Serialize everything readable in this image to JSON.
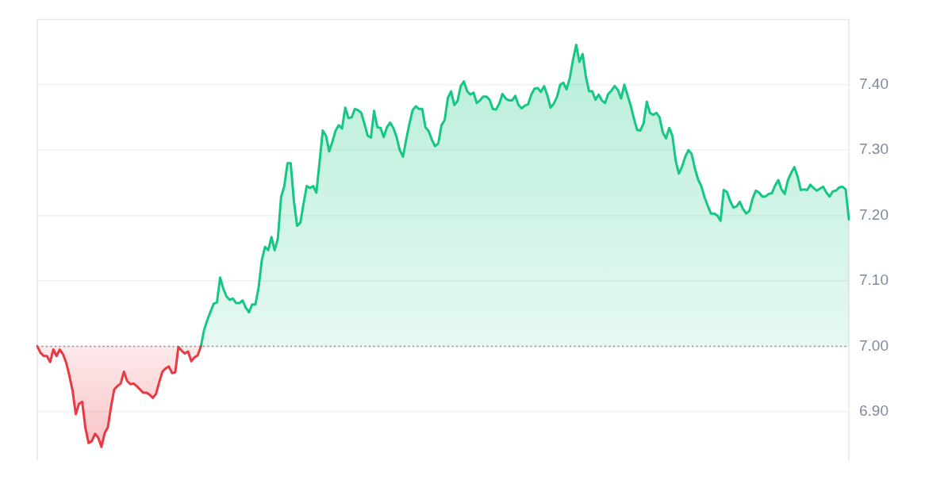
{
  "chart_data": {
    "type": "area",
    "categories": [
      null,
      null,
      null,
      null,
      null,
      null,
      null,
      null,
      null,
      null,
      null,
      null,
      null,
      null,
      null,
      null,
      null,
      null,
      null,
      null,
      null,
      null,
      null,
      null,
      null,
      null,
      null,
      null,
      null,
      null,
      null,
      null,
      null,
      null,
      null,
      null,
      null,
      null,
      null,
      null,
      null,
      null,
      null,
      null,
      null,
      null,
      null,
      null,
      null,
      null,
      null,
      null,
      null,
      null,
      null,
      null,
      null,
      null,
      null,
      null,
      null,
      null,
      null,
      null,
      null,
      null,
      null,
      null,
      null,
      null,
      null,
      null,
      null,
      null,
      null,
      null,
      null,
      null,
      null,
      null,
      null,
      null,
      null,
      null,
      null,
      null,
      null,
      null,
      null,
      null,
      null,
      null,
      null,
      null,
      null,
      null,
      null,
      null,
      null,
      null,
      null,
      null,
      null,
      null,
      null,
      null,
      null,
      null,
      null,
      null,
      null,
      null,
      null,
      null,
      null,
      null,
      null,
      null,
      null,
      null,
      null,
      null,
      null,
      null,
      null,
      null,
      null,
      null,
      null,
      null,
      null,
      null,
      null,
      null,
      null,
      null,
      null,
      null,
      null,
      null,
      null,
      null,
      null,
      null,
      null,
      null,
      null,
      null,
      null,
      null,
      null,
      null,
      null,
      null,
      null,
      null,
      null,
      null,
      null,
      null,
      null,
      null,
      null,
      null,
      null,
      null,
      null,
      null,
      null,
      null,
      null,
      null,
      null,
      null,
      null,
      null,
      null,
      null,
      null,
      null,
      null,
      null,
      null,
      null,
      null,
      null,
      null,
      null,
      null,
      null,
      null,
      null,
      null,
      null,
      null,
      null,
      null,
      null,
      null,
      null,
      null,
      null,
      null,
      null,
      null,
      null,
      null,
      null,
      null,
      null,
      null,
      null,
      null,
      null,
      null,
      null,
      null,
      null,
      null,
      null,
      null,
      null,
      null,
      null,
      null,
      null,
      null,
      null,
      null,
      null,
      null,
      null,
      null,
      null,
      null,
      null,
      null,
      null,
      null,
      null,
      null,
      null,
      null,
      null,
      null,
      null,
      null,
      null,
      null,
      null,
      null,
      null,
      null,
      null
    ],
    "series": [
      {
        "color": "#ea3943",
        "values": [
          7.0,
          6.99,
          6.985,
          6.985,
          6.976,
          6.995,
          6.985,
          6.995,
          6.988,
          6.975,
          6.955,
          6.932,
          6.896,
          6.912,
          6.915,
          6.875,
          6.852,
          6.855,
          6.866,
          6.86,
          6.846,
          6.867,
          6.876,
          6.908,
          6.934,
          6.939,
          6.943,
          6.961,
          6.947,
          6.942,
          6.943,
          6.939,
          6.934,
          6.929,
          6.929,
          6.926,
          6.921,
          6.927,
          6.945,
          6.961,
          6.966,
          6.969,
          6.959,
          6.96,
          6.999,
          6.993,
          6.989,
          6.992,
          6.977,
          6.983,
          6.986,
          7.0,
          null,
          null,
          null,
          null,
          null,
          null,
          null,
          null,
          null,
          null,
          null,
          null,
          null,
          null,
          null,
          null,
          null,
          null,
          null,
          null,
          null,
          null,
          null,
          null,
          null,
          null,
          null,
          null,
          null,
          null,
          null,
          null,
          null,
          null,
          null,
          null,
          null,
          null,
          null,
          null,
          null,
          null,
          null,
          null,
          null,
          null,
          null,
          null,
          null,
          null,
          null,
          null,
          null,
          null,
          null,
          null,
          null,
          null,
          null,
          null,
          null,
          null,
          null,
          null,
          null,
          null,
          null,
          null,
          null,
          null,
          null,
          null,
          null,
          null,
          null,
          null,
          null,
          null,
          null,
          null,
          null,
          null,
          null,
          null,
          null,
          null,
          null,
          null,
          null,
          null,
          null,
          null,
          null,
          null,
          null,
          null,
          null,
          null,
          null,
          null,
          null,
          null,
          null,
          null,
          null,
          null,
          null,
          null,
          null,
          null,
          null,
          null,
          null,
          null,
          null,
          null,
          null,
          null,
          null,
          null,
          null,
          null,
          null,
          null,
          null,
          null,
          null,
          null,
          null,
          null,
          null,
          null,
          null,
          null,
          null,
          null,
          null,
          null,
          null,
          null,
          null,
          null,
          null,
          null,
          null,
          null,
          null,
          null,
          null,
          null,
          null,
          null,
          null,
          null,
          null,
          null,
          null,
          null,
          null,
          null,
          null,
          null,
          null,
          null,
          null,
          null,
          null,
          null,
          null,
          null,
          null,
          null,
          null,
          null,
          null,
          null,
          null,
          null,
          null,
          null,
          null,
          null,
          null,
          null,
          null,
          null,
          null,
          null,
          null,
          null,
          null,
          null,
          null,
          null,
          null,
          null,
          null,
          null,
          null,
          null,
          null,
          null
        ]
      },
      {
        "color": "#16c784",
        "values": [
          null,
          null,
          null,
          null,
          null,
          null,
          null,
          null,
          null,
          null,
          null,
          null,
          null,
          null,
          null,
          null,
          null,
          null,
          null,
          null,
          null,
          null,
          null,
          null,
          null,
          null,
          null,
          null,
          null,
          null,
          null,
          null,
          null,
          null,
          null,
          null,
          null,
          null,
          null,
          null,
          null,
          null,
          null,
          null,
          null,
          null,
          null,
          null,
          null,
          null,
          null,
          7.0,
          7.025,
          7.04,
          7.053,
          7.065,
          7.067,
          7.105,
          7.088,
          7.076,
          7.071,
          7.073,
          7.066,
          7.066,
          7.07,
          7.059,
          7.052,
          7.064,
          7.064,
          7.09,
          7.132,
          7.152,
          7.147,
          7.167,
          7.147,
          7.165,
          7.228,
          7.245,
          7.28,
          7.28,
          7.222,
          7.184,
          7.189,
          7.218,
          7.245,
          7.242,
          7.245,
          7.235,
          7.282,
          7.33,
          7.322,
          7.298,
          7.313,
          7.33,
          7.338,
          7.333,
          7.365,
          7.349,
          7.35,
          7.363,
          7.361,
          7.357,
          7.34,
          7.322,
          7.319,
          7.36,
          7.335,
          7.334,
          7.32,
          7.335,
          7.342,
          7.334,
          7.32,
          7.3,
          7.29,
          7.316,
          7.34,
          7.361,
          7.367,
          7.363,
          7.363,
          7.335,
          7.329,
          7.316,
          7.306,
          7.31,
          7.338,
          7.346,
          7.38,
          7.39,
          7.369,
          7.375,
          7.398,
          7.405,
          7.39,
          7.385,
          7.388,
          7.372,
          7.376,
          7.382,
          7.382,
          7.377,
          7.363,
          7.362,
          7.371,
          7.386,
          7.379,
          7.376,
          7.376,
          7.383,
          7.369,
          7.364,
          7.368,
          7.37,
          7.385,
          7.394,
          7.395,
          7.389,
          7.398,
          7.384,
          7.365,
          7.371,
          7.381,
          7.4,
          7.403,
          7.393,
          7.41,
          7.438,
          7.461,
          7.435,
          7.447,
          7.413,
          7.39,
          7.39,
          7.377,
          7.385,
          7.376,
          7.372,
          7.386,
          7.391,
          7.398,
          7.392,
          7.379,
          7.4,
          7.384,
          7.368,
          7.348,
          7.331,
          7.33,
          7.341,
          7.374,
          7.357,
          7.354,
          7.357,
          7.35,
          7.327,
          7.318,
          7.334,
          7.322,
          7.284,
          7.264,
          7.275,
          7.29,
          7.3,
          7.294,
          7.272,
          7.255,
          7.245,
          7.228,
          7.215,
          7.203,
          7.203,
          7.2,
          7.192,
          7.239,
          7.236,
          7.222,
          7.212,
          7.214,
          7.221,
          7.21,
          7.203,
          7.207,
          7.226,
          7.238,
          7.235,
          7.229,
          7.229,
          7.233,
          7.234,
          7.246,
          7.254,
          7.24,
          7.233,
          7.254,
          7.265,
          7.274,
          7.26,
          7.239,
          7.24,
          7.239,
          7.247,
          7.242,
          7.238,
          7.241,
          7.244,
          7.235,
          7.229,
          7.237,
          7.238,
          7.243,
          7.244,
          7.24,
          7.194
        ]
      }
    ],
    "ylim": [
      6.825,
      7.5
    ],
    "yticks": [
      {
        "value": 6.9,
        "label": "6.90"
      },
      {
        "value": 7.0,
        "label": "7.00"
      },
      {
        "value": 7.1,
        "label": "7.10"
      },
      {
        "value": 7.2,
        "label": "7.20"
      },
      {
        "value": 7.3,
        "label": "7.30"
      },
      {
        "value": 7.4,
        "label": "7.40"
      }
    ],
    "grid": "y",
    "tick_labels": "y",
    "marker": "none",
    "ref_lines": [
      {
        "axis": "y",
        "value": 7.0,
        "color": "#8a8a8a",
        "line_style": "dotted"
      }
    ]
  }
}
